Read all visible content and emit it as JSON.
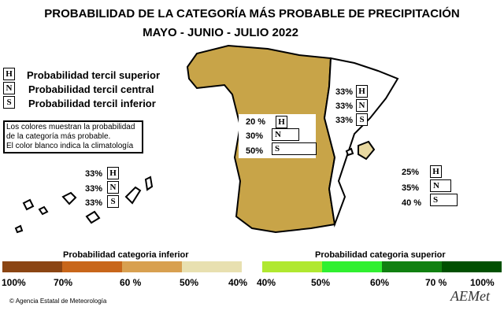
{
  "title": "PROBABILIDAD DE LA  CATEGORÍA MÁS PROBABLE DE PRECIPITACIÓN",
  "subtitle": "MAYO - JUNIO - JULIO 2022",
  "legend": [
    {
      "letter": "H",
      "label": "Probabilidad  tercil superior"
    },
    {
      "letter": "N",
      "label": "Probabilidad  tercil central"
    },
    {
      "letter": "S",
      "label": "Probabilidad  tercil inferior"
    }
  ],
  "note": [
    "Los colores muestran la probabilidad",
    "de la categoría más probable.",
    "El color blanco indica la climatología"
  ],
  "regions": {
    "west": {
      "H": "20 %",
      "N": "30%",
      "S": "50%",
      "color": "#c8a448"
    },
    "east": {
      "H": "33%",
      "N": "33%",
      "S": "33%",
      "color": "#ffffff"
    },
    "baleares": {
      "H": "25%",
      "N": "35%",
      "S": "40 %",
      "color": "#e8d8a0"
    },
    "canarias": {
      "H": "33%",
      "N": "33%",
      "S": "33%",
      "color": "#ffffff"
    }
  },
  "scale_inferior": {
    "title": "Probabilidad categoria inferior",
    "ticks": [
      "100%",
      "70%",
      "60 %",
      "50%",
      "40%"
    ],
    "colors": [
      "#8b4513",
      "#c8661a",
      "#d8a050",
      "#e8e0b0"
    ]
  },
  "scale_superior": {
    "title": "Probabilidad categoria superior",
    "ticks": [
      "40%",
      "50%",
      "60%",
      "70 %",
      "100%"
    ],
    "colors": [
      "#b0e830",
      "#30f030",
      "#108010",
      "#005000"
    ]
  },
  "footer": "Agencia Estatal de Meteorología",
  "logo": "AEMet"
}
